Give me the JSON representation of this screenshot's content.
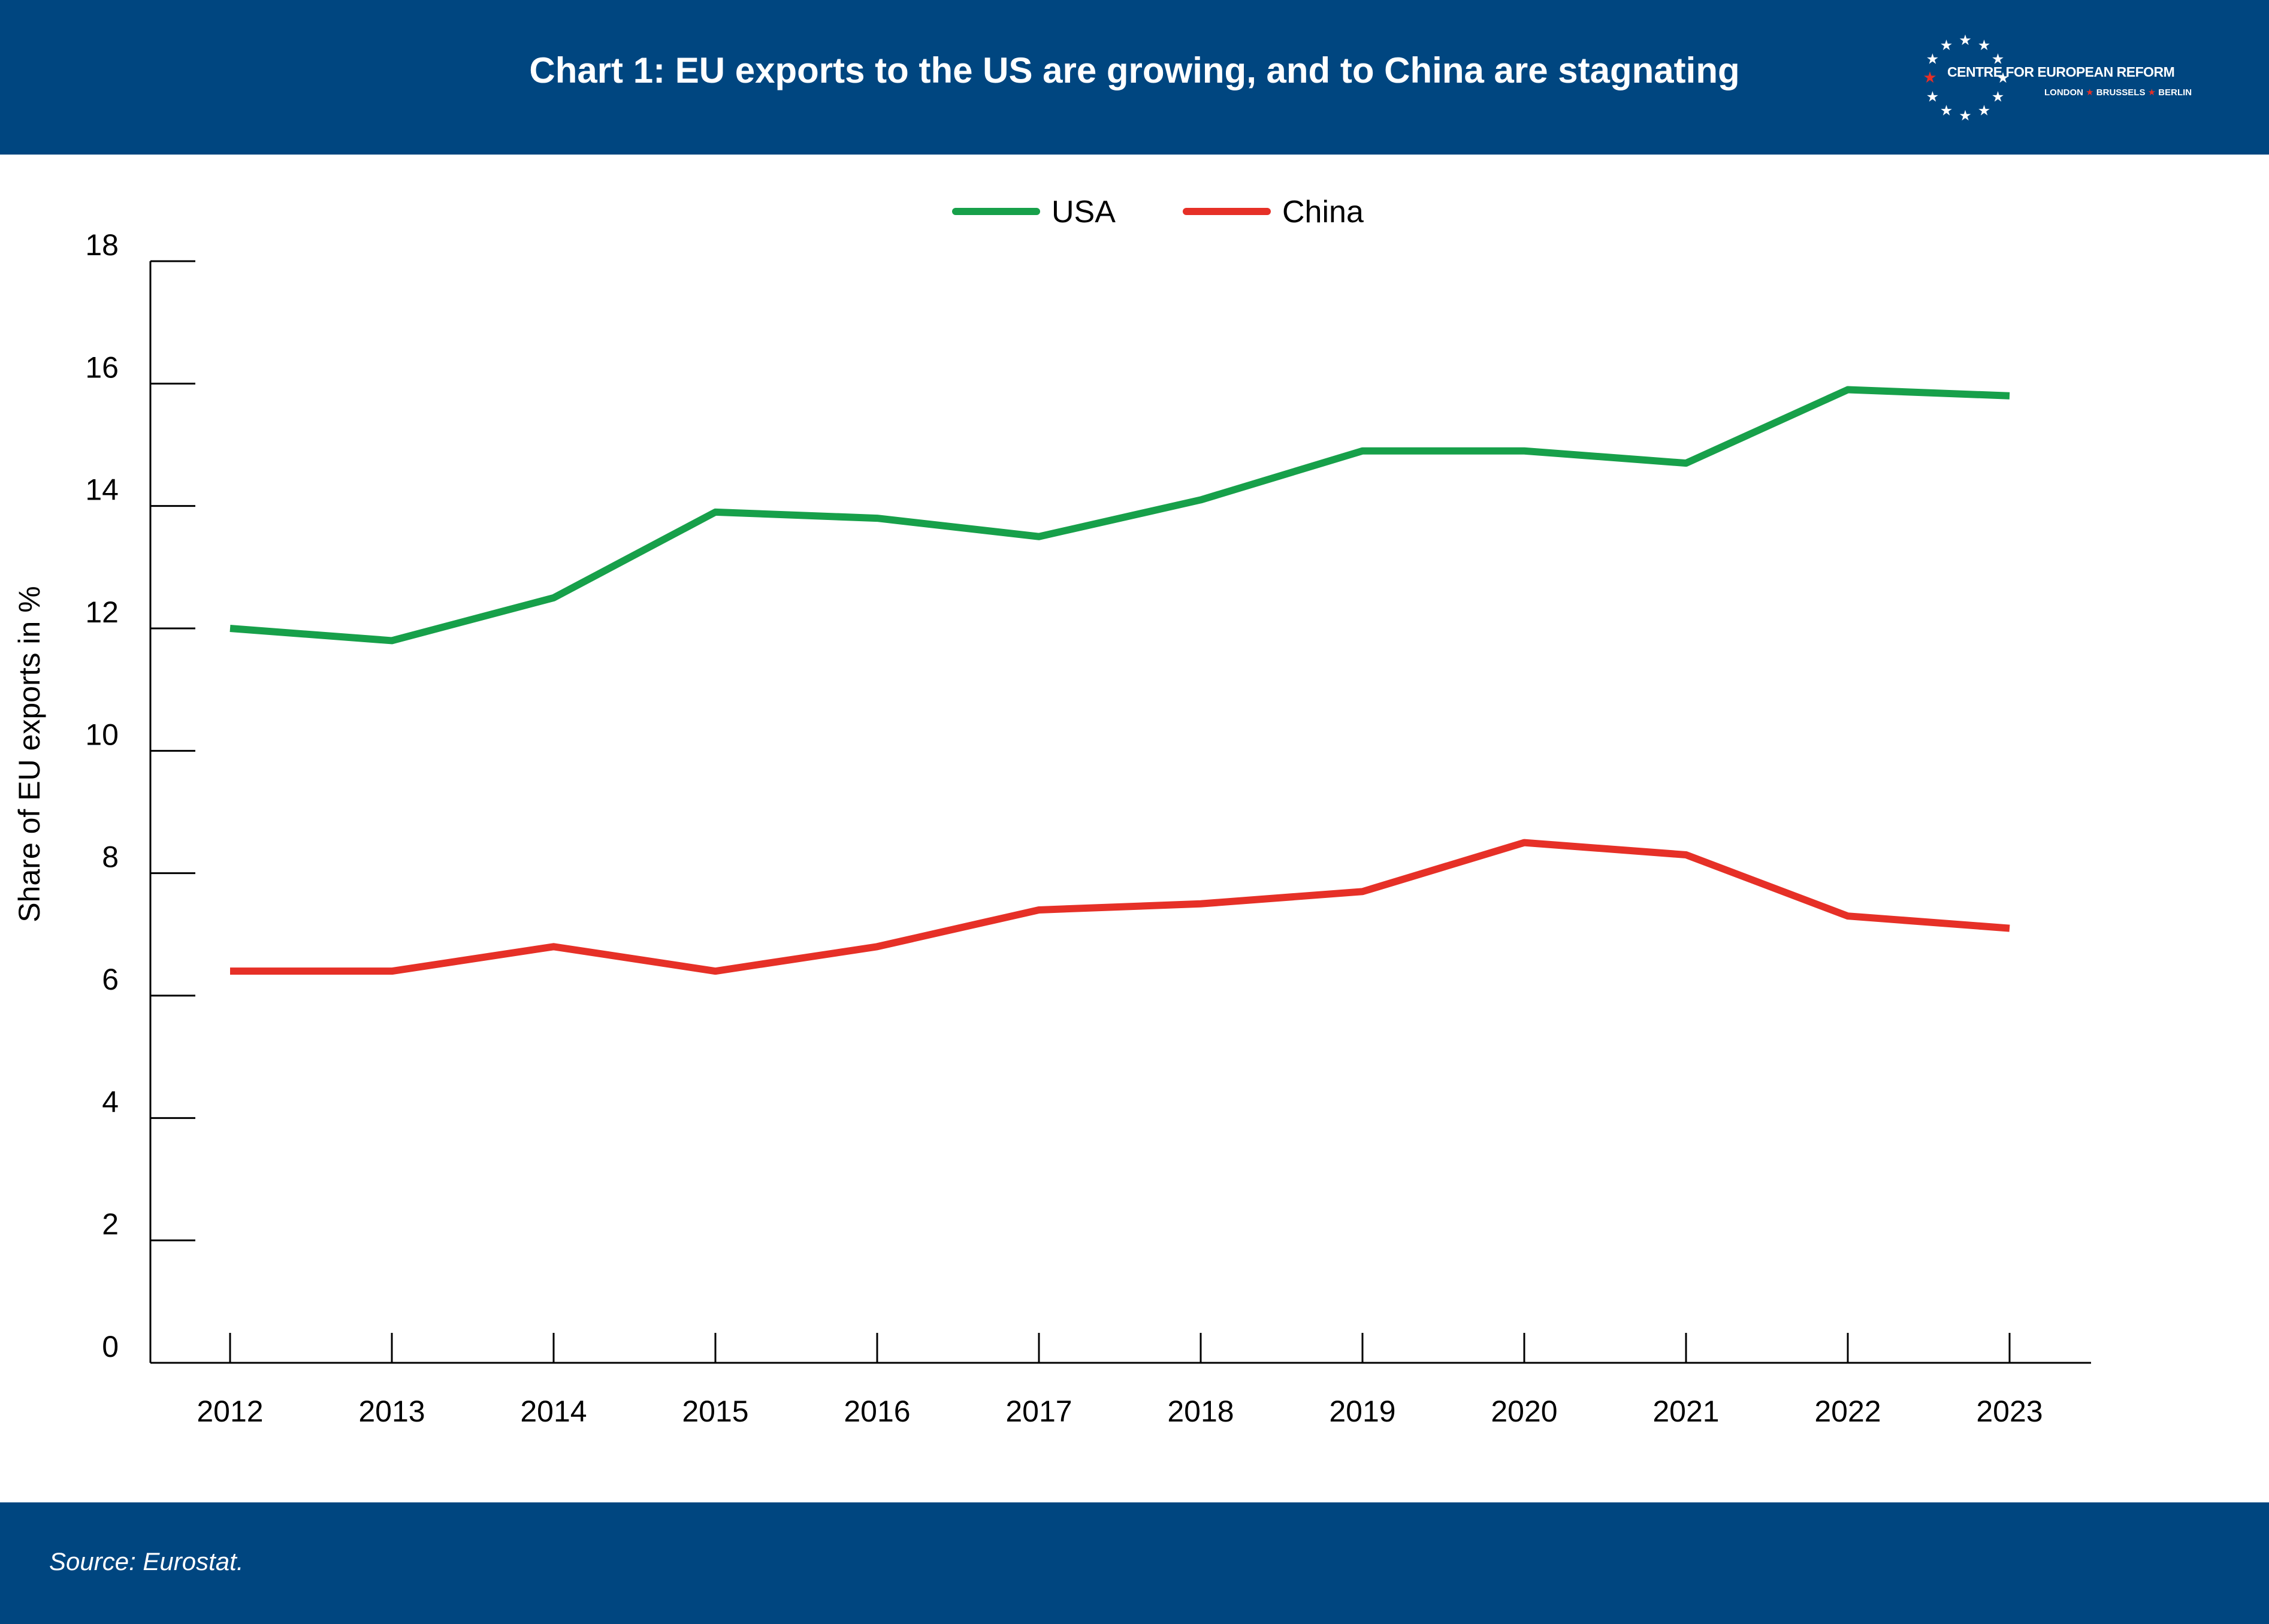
{
  "header": {
    "title": "Chart 1: EU exports to the US are growing, and to China are stagnating",
    "logo": {
      "name": "CENTRE FOR EUROPEAN REFORM",
      "cities": [
        "LONDON",
        "BRUSSELS",
        "BERLIN"
      ],
      "icon": "ring-of-stars-logo"
    }
  },
  "colors": {
    "header_bg": "#004680",
    "usa": "#17a04a",
    "china": "#e63027",
    "axis": "#000000"
  },
  "chart_data": {
    "type": "line",
    "title": "Chart 1: EU exports to the US are growing, and to China are stagnating",
    "xlabel": "",
    "ylabel": "Share of EU exports in %",
    "x": [
      2012,
      2013,
      2014,
      2015,
      2016,
      2017,
      2018,
      2019,
      2020,
      2021,
      2022,
      2023
    ],
    "ylim": [
      0,
      18
    ],
    "yticks": [
      0,
      2,
      4,
      6,
      8,
      10,
      12,
      14,
      16,
      18
    ],
    "grid": false,
    "legend": "top-center",
    "series": [
      {
        "name": "USA",
        "color": "#17a04a",
        "values": [
          12.0,
          11.8,
          12.5,
          13.9,
          13.8,
          13.5,
          14.1,
          14.9,
          14.9,
          14.7,
          15.9,
          15.8
        ]
      },
      {
        "name": "China",
        "color": "#e63027",
        "values": [
          6.4,
          6.4,
          6.8,
          6.4,
          6.8,
          7.4,
          7.5,
          7.7,
          8.5,
          8.3,
          7.3,
          7.1
        ]
      }
    ]
  },
  "footer": {
    "source": "Source: Eurostat."
  }
}
